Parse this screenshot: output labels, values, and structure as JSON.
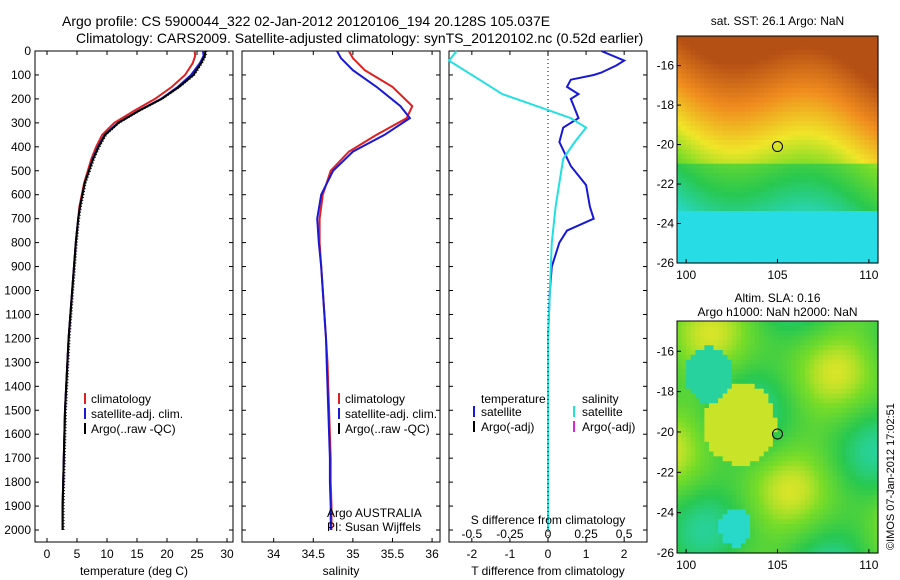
{
  "title": {
    "line1": "Argo profile: CS 5900044_322 02-Jan-2012 20120106_194 20.128S 105.037E",
    "line2": "Climatology: CARS2009. Satellite-adjusted climatology: synTS_20120102.nc (0.52d earlier)"
  },
  "colors": {
    "climatology": "#e02020",
    "satellite": "#1818d8",
    "argo": "#000000",
    "sal_satellite": "#22e0e0",
    "sal_argo": "#e020e0"
  },
  "chart_data": [
    {
      "type": "line",
      "xlabel": "temperature (deg C)",
      "ylabel": "",
      "xlim": [
        -2,
        31
      ],
      "ylim": [
        2050,
        0
      ],
      "xticks": [
        0,
        5,
        10,
        15,
        20,
        25,
        30
      ],
      "yticks": [
        0,
        100,
        200,
        300,
        400,
        500,
        600,
        700,
        800,
        900,
        1000,
        1100,
        1200,
        1300,
        1400,
        1500,
        1600,
        1700,
        1800,
        1900,
        2000
      ],
      "legend": [
        "climatology",
        "satellite-adj. clim.",
        "Argo(..raw -QC)"
      ],
      "series": [
        {
          "name": "climatology",
          "color": "#e02020",
          "x": [
            24.6,
            24.7,
            24.3,
            23.0,
            20.8,
            18.0,
            14.5,
            11.2,
            9.2,
            8.2,
            7.4,
            6.8,
            6.2,
            5.8,
            5.4,
            5.2,
            4.8,
            4.5,
            4.2,
            3.9,
            3.6,
            3.4,
            3.2,
            3.0,
            2.9,
            2.8,
            2.7,
            2.6,
            2.6
          ],
          "y": [
            0,
            20,
            50,
            100,
            150,
            200,
            250,
            300,
            350,
            400,
            450,
            500,
            550,
            600,
            650,
            700,
            800,
            900,
            1000,
            1100,
            1200,
            1300,
            1400,
            1500,
            1600,
            1700,
            1800,
            1900,
            2000
          ]
        },
        {
          "name": "satellite-adj. clim.",
          "color": "#1818d8",
          "x": [
            26.0,
            26.1,
            25.5,
            24.0,
            21.8,
            19.0,
            15.2,
            11.8,
            9.6,
            8.5,
            7.6,
            7.0,
            6.3,
            5.9,
            5.5,
            5.2,
            4.8,
            4.5,
            4.2,
            3.9,
            3.6,
            3.4,
            3.2,
            3.0,
            2.9,
            2.8,
            2.7,
            2.6,
            2.6
          ],
          "y": [
            0,
            20,
            50,
            100,
            150,
            200,
            250,
            300,
            350,
            400,
            450,
            500,
            550,
            600,
            650,
            700,
            800,
            900,
            1000,
            1100,
            1200,
            1300,
            1400,
            1500,
            1600,
            1700,
            1800,
            1900,
            2000
          ]
        },
        {
          "name": "Argo(..raw -QC)",
          "color": "#000000",
          "x": [
            26.4,
            26.3,
            25.7,
            24.4,
            22.0,
            19.1,
            15.3,
            11.9,
            9.7,
            8.6,
            7.7,
            7.0,
            6.3,
            5.9,
            5.5,
            5.2,
            4.8,
            4.5,
            4.2,
            3.9,
            3.6,
            3.4,
            3.2,
            3.0,
            2.9,
            2.8,
            2.7,
            2.6,
            2.6
          ],
          "y": [
            0,
            20,
            50,
            100,
            150,
            200,
            250,
            300,
            350,
            400,
            450,
            500,
            550,
            600,
            650,
            700,
            800,
            900,
            1000,
            1100,
            1200,
            1300,
            1400,
            1500,
            1600,
            1700,
            1800,
            1900,
            2000
          ]
        }
      ]
    },
    {
      "type": "line",
      "xlabel": "salinity",
      "xlim": [
        33.6,
        36.1
      ],
      "ylim": [
        2050,
        0
      ],
      "xticks": [
        34,
        34.5,
        35,
        35.5,
        36
      ],
      "legend": [
        "climatology",
        "satellite-adj. clim.",
        "Argo(..raw -QC)"
      ],
      "annotation": [
        "Argo AUSTRALIA",
        "PI: Susan Wijffels"
      ],
      "series": [
        {
          "name": "climatology",
          "color": "#e02020",
          "x": [
            34.95,
            35.0,
            35.15,
            35.5,
            35.75,
            35.68,
            35.3,
            34.95,
            34.72,
            34.62,
            34.58,
            34.58,
            34.6,
            34.62,
            34.64,
            34.66,
            34.68,
            34.69,
            34.7,
            34.71,
            34.72,
            34.72,
            34.73,
            34.73
          ],
          "y": [
            0,
            30,
            80,
            150,
            230,
            280,
            350,
            420,
            500,
            600,
            700,
            800,
            900,
            1000,
            1100,
            1200,
            1300,
            1400,
            1500,
            1600,
            1700,
            1800,
            1900,
            2000
          ]
        },
        {
          "name": "satellite-adj. clim.",
          "color": "#1818d8",
          "x": [
            34.8,
            34.85,
            35.0,
            35.3,
            35.6,
            35.72,
            35.4,
            35.0,
            34.75,
            34.6,
            34.55,
            34.57,
            34.6,
            34.62,
            34.64,
            34.66,
            34.67,
            34.68,
            34.69,
            34.7,
            34.71,
            34.71,
            34.72,
            34.72
          ],
          "y": [
            0,
            30,
            80,
            150,
            230,
            280,
            350,
            420,
            500,
            600,
            700,
            800,
            900,
            1000,
            1100,
            1200,
            1300,
            1400,
            1500,
            1600,
            1700,
            1800,
            1900,
            2000
          ]
        }
      ]
    },
    {
      "type": "line",
      "xlabel": "T difference from climatology",
      "xlabel_top": "S difference from climatology",
      "xlim": [
        -2.6,
        2.6
      ],
      "ylim": [
        2050,
        0
      ],
      "xticks": [
        -2,
        -1,
        0,
        1,
        2
      ],
      "xticks_s": [
        -0.5,
        -0.25,
        0,
        0.25,
        0.5
      ],
      "legend": {
        "temperature": [
          "satellite",
          "Argo(-adj)"
        ],
        "salinity": [
          "satellite",
          "Argo(-adj)"
        ]
      },
      "series": [
        {
          "name": "temperature satellite",
          "color": "#1818d8",
          "x": [
            1.4,
            2.0,
            1.8,
            1.4,
            1.2,
            0.6,
            0.5,
            0.8,
            0.6,
            0.7,
            0.8,
            0.4,
            0.3,
            0.6,
            1.0,
            1.1,
            1.2,
            0.5,
            0.3,
            0.1,
            0.05,
            0.0,
            0.0,
            0.0
          ],
          "y": [
            0,
            40,
            60,
            90,
            100,
            120,
            150,
            180,
            200,
            240,
            280,
            320,
            380,
            480,
            560,
            650,
            700,
            750,
            800,
            900,
            1000,
            1200,
            1600,
            2000
          ]
        },
        {
          "name": "salinity satellite",
          "color": "#22e0e0",
          "x": [
            -2.4,
            -2.6,
            -2.2,
            -1.8,
            -1.2,
            -0.3,
            0.6,
            1.0,
            0.7,
            0.4,
            0.3,
            0.2,
            0.1,
            0.05,
            0.0,
            0.0,
            0.0
          ],
          "y": [
            0,
            40,
            80,
            120,
            180,
            230,
            280,
            320,
            380,
            450,
            550,
            650,
            800,
            1000,
            1200,
            1600,
            2000
          ]
        }
      ]
    },
    {
      "type": "heatmap",
      "title": "sat. SST: 26.1  Argo: NaN",
      "xticks": [
        100,
        105,
        110
      ],
      "yticks": [
        -16,
        -18,
        -20,
        -22,
        -24,
        -26
      ],
      "xlim": [
        99.5,
        110.5
      ],
      "ylim": [
        -26,
        -14.5
      ],
      "marker": [
        105,
        -20.1
      ]
    },
    {
      "type": "heatmap",
      "title_lines": [
        "Altim. SLA: 0.16",
        "Argo h1000: NaN h2000: NaN"
      ],
      "xticks": [
        100,
        105,
        110
      ],
      "yticks": [
        -16,
        -18,
        -20,
        -22,
        -24,
        -26
      ],
      "xlim": [
        99.5,
        110.5
      ],
      "ylim": [
        -26,
        -14.5
      ],
      "marker": [
        105,
        -20.1
      ]
    }
  ],
  "side_label": "©IMOS 07-Jan-2012 17:02:51"
}
